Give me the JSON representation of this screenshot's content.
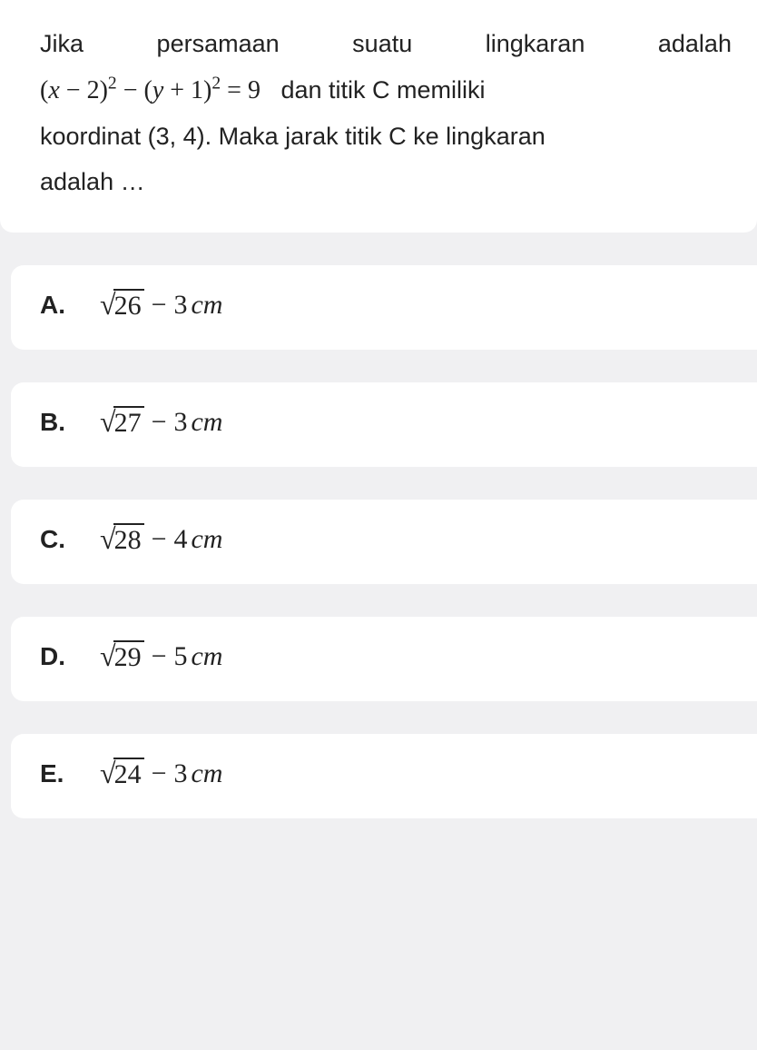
{
  "question": {
    "line1_words": [
      "Jika",
      "persamaan",
      "suatu",
      "lingkaran",
      "adalah"
    ],
    "equation_parts": {
      "lparen1": "(",
      "var_x": "x",
      "minus1": " − ",
      "num2": "2",
      "rparen1": ")",
      "sup2a": "2",
      "minus2": " − ",
      "lparen2": "(",
      "var_y": "y",
      "plus1": " + ",
      "num1": "1",
      "rparen2": ")",
      "sup2b": "2",
      "equals": " = ",
      "num9": "9"
    },
    "text_after_eq": "dan titik C memiliki",
    "line3": "koordinat (3, 4). Maka jarak titik C ke lingkaran",
    "line4": "adalah …"
  },
  "answers": [
    {
      "label": "A.",
      "sqrt_value": "26",
      "minus_value": "3",
      "unit": "cm"
    },
    {
      "label": "B.",
      "sqrt_value": "27",
      "minus_value": "3",
      "unit": "cm"
    },
    {
      "label": "C.",
      "sqrt_value": "28",
      "minus_value": "4",
      "unit": "cm"
    },
    {
      "label": "D.",
      "sqrt_value": "29",
      "minus_value": "5",
      "unit": "cm"
    },
    {
      "label": "E.",
      "sqrt_value": "24",
      "minus_value": "3",
      "unit": "cm"
    }
  ],
  "styling": {
    "background_color": "#f0f0f2",
    "card_color": "#ffffff",
    "text_color": "#222222",
    "question_fontsize": 27,
    "answer_fontsize": 30,
    "label_fontsize": 28,
    "card_radius": 14,
    "card_gap": 36
  }
}
